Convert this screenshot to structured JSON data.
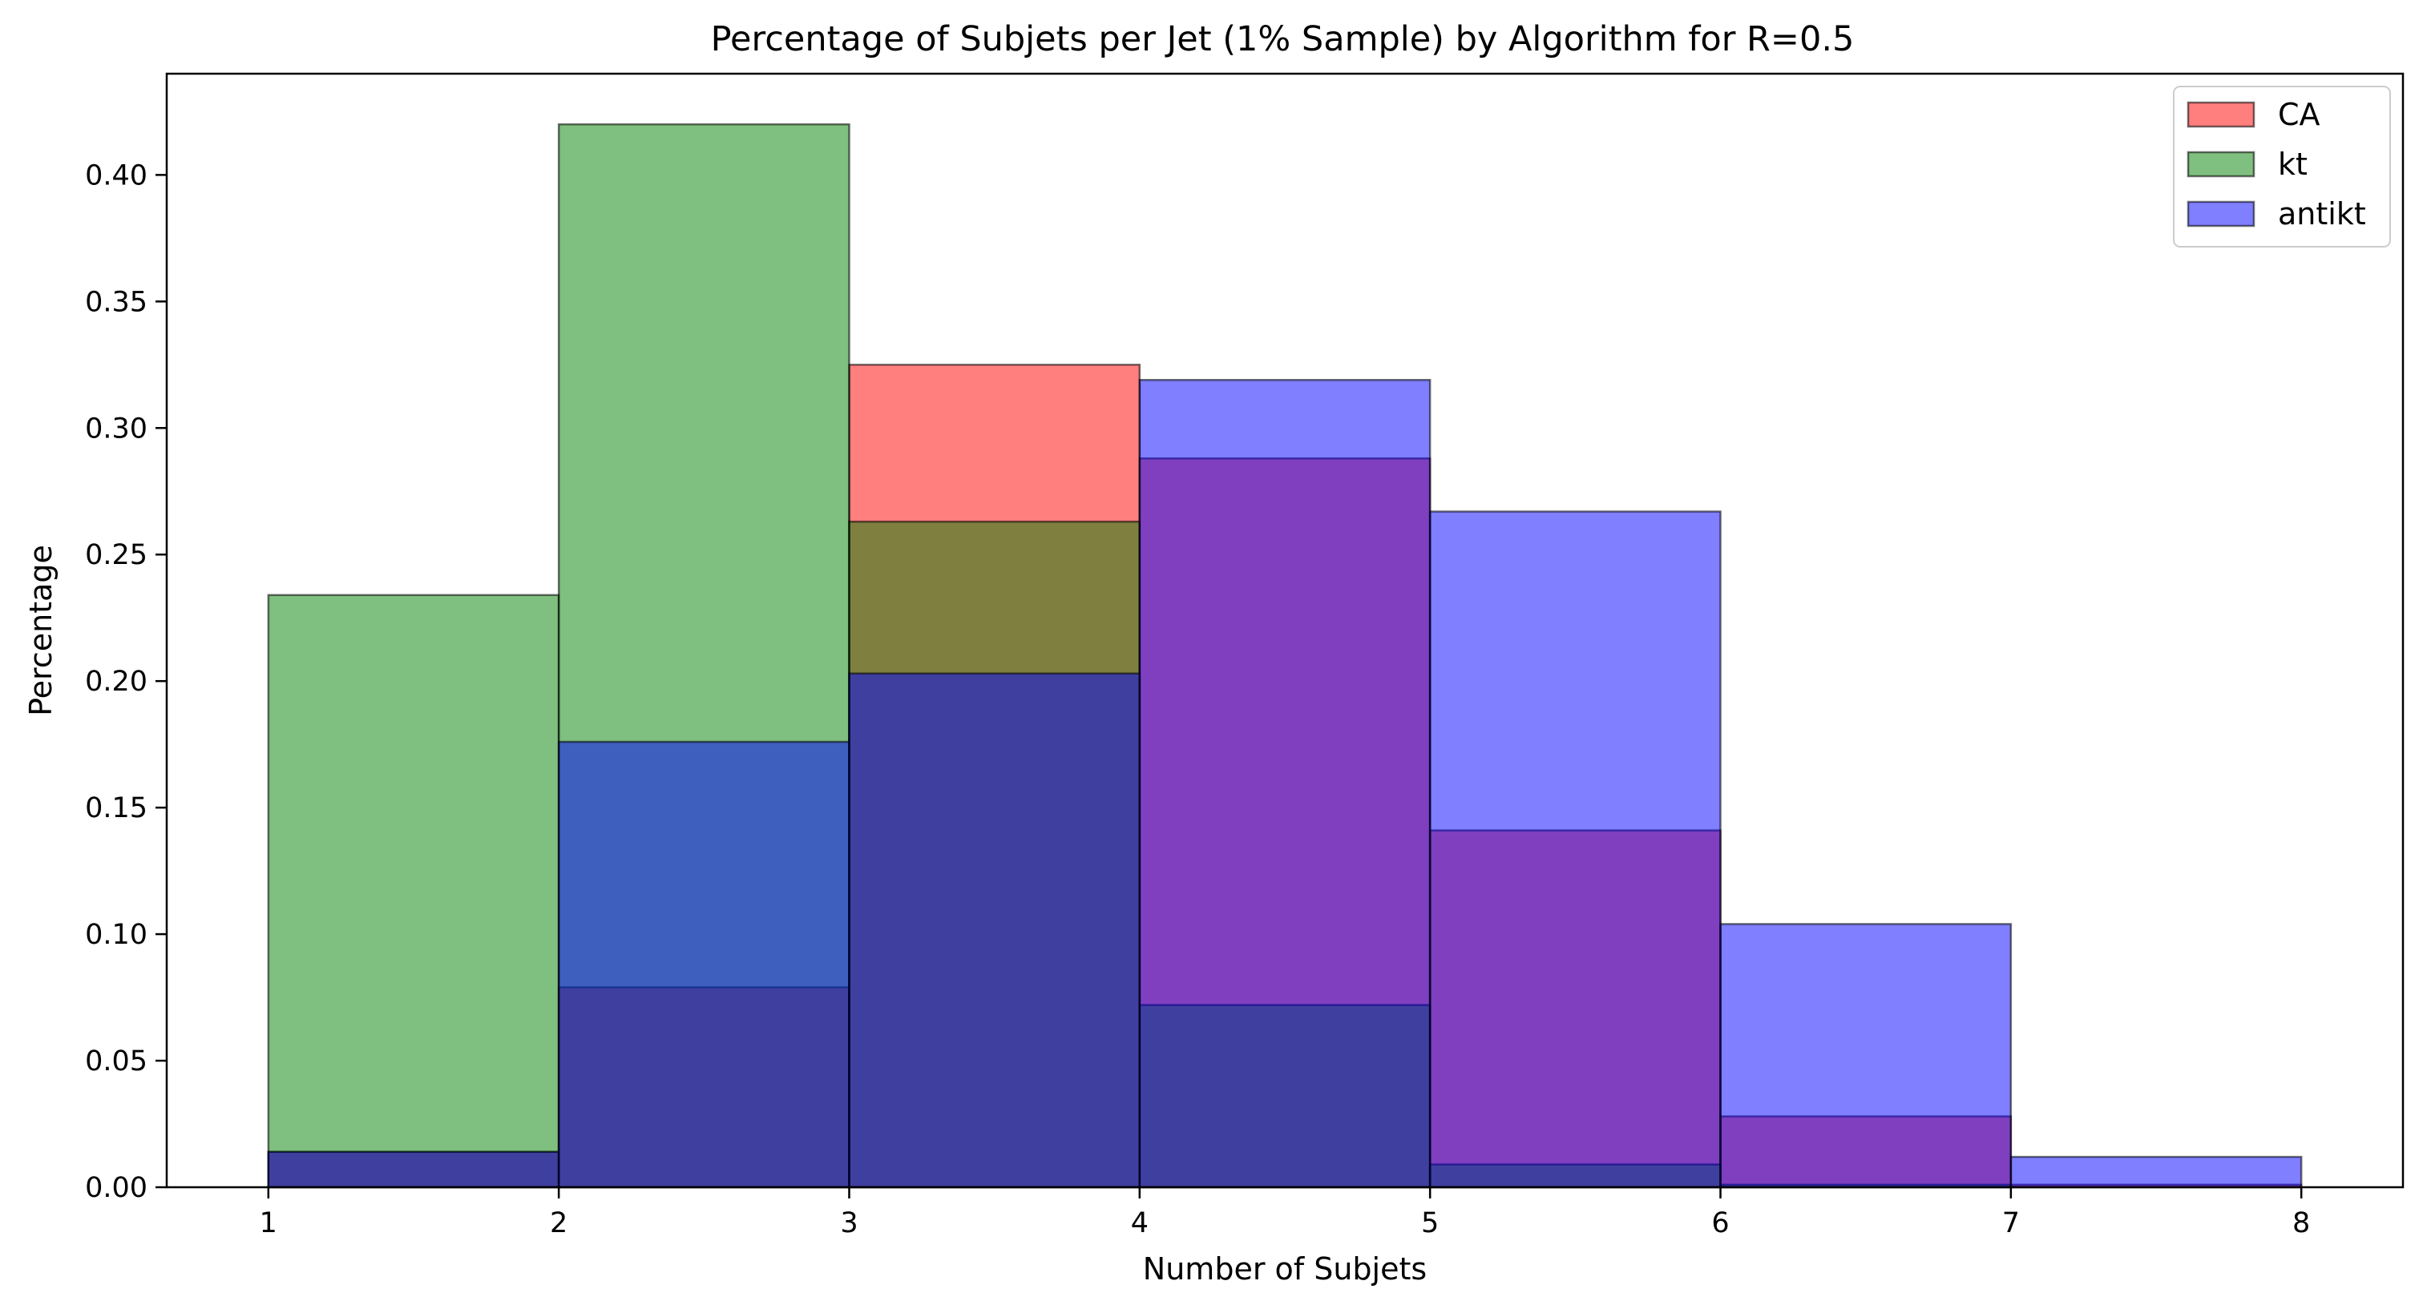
{
  "chart_data": {
    "type": "bar",
    "title": "Percentage of Subjets per Jet (1% Sample) by Algorithm for R=0.5",
    "xlabel": "Number of Subjets",
    "ylabel": "Percentage",
    "xlim": [
      0.65,
      8.35
    ],
    "ylim": [
      0,
      0.44
    ],
    "xticks": [
      "1",
      "2",
      "3",
      "4",
      "5",
      "6",
      "7",
      "8"
    ],
    "yticks": [
      "0.00",
      "0.05",
      "0.10",
      "0.15",
      "0.20",
      "0.25",
      "0.30",
      "0.35",
      "0.40"
    ],
    "bin_edges": [
      1,
      2,
      3,
      4,
      5,
      6,
      7,
      8
    ],
    "legend_position": "top-right",
    "grid": false,
    "bar_alpha": 0.5,
    "series": [
      {
        "name": "CA",
        "color": "#ff0000",
        "values": [
          0.014,
          0.079,
          0.325,
          0.288,
          0.141,
          0.028,
          0.001
        ]
      },
      {
        "name": "kt",
        "color": "#008000",
        "values": [
          0.234,
          0.42,
          0.263,
          0.072,
          0.009,
          0.001,
          0.0
        ]
      },
      {
        "name": "antikt",
        "color": "#0000ff",
        "values": [
          0.014,
          0.176,
          0.203,
          0.319,
          0.267,
          0.104,
          0.012
        ]
      }
    ]
  }
}
